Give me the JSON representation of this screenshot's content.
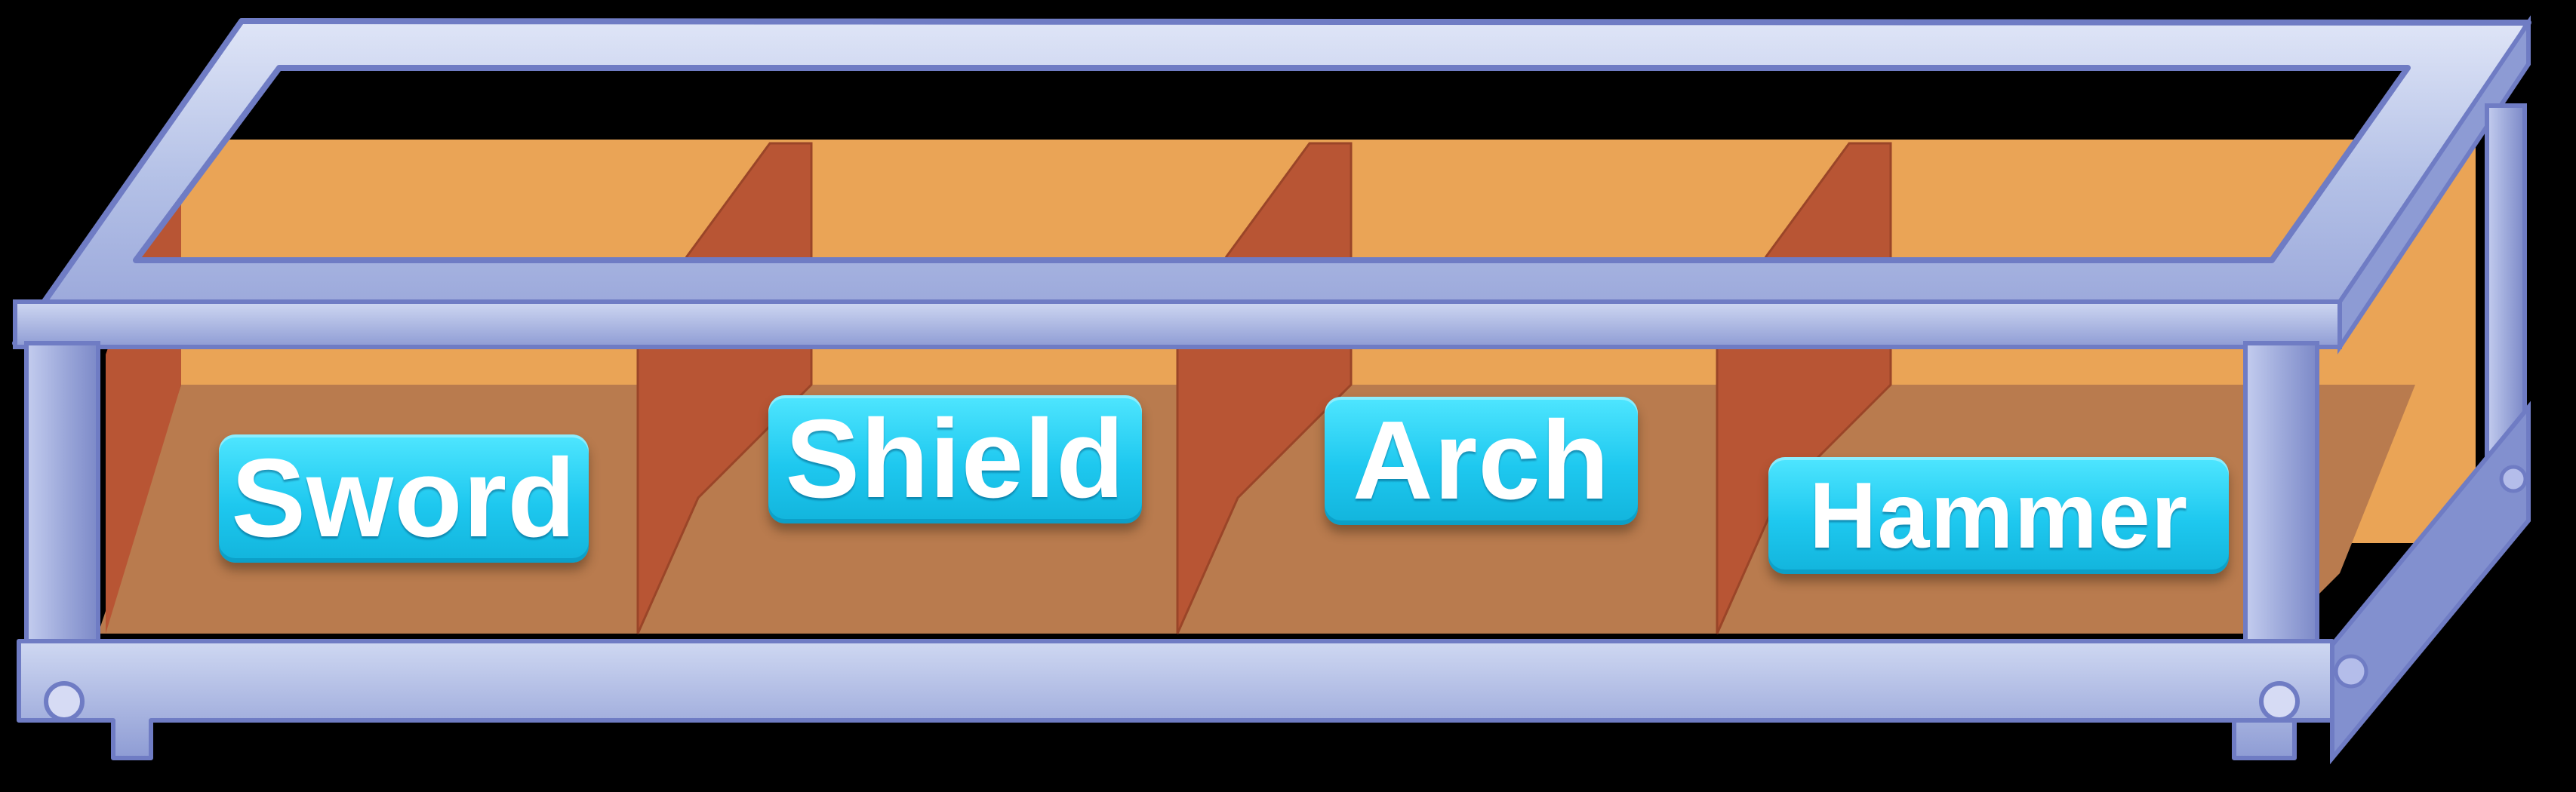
{
  "scene": {
    "object": "four-compartment wooden crate in a metal frame",
    "frame_color": "#a3aedc",
    "frame_edge_color": "#6f7cc4",
    "back_wall_color": "#e9a456",
    "floor_color": "#b87b4e",
    "divider_color": "#b85534",
    "label_color": "#22c8ee",
    "background_color": "#000000"
  },
  "slots": [
    {
      "label": "Sword"
    },
    {
      "label": "Shield"
    },
    {
      "label": "Arch"
    },
    {
      "label": "Hammer"
    }
  ]
}
